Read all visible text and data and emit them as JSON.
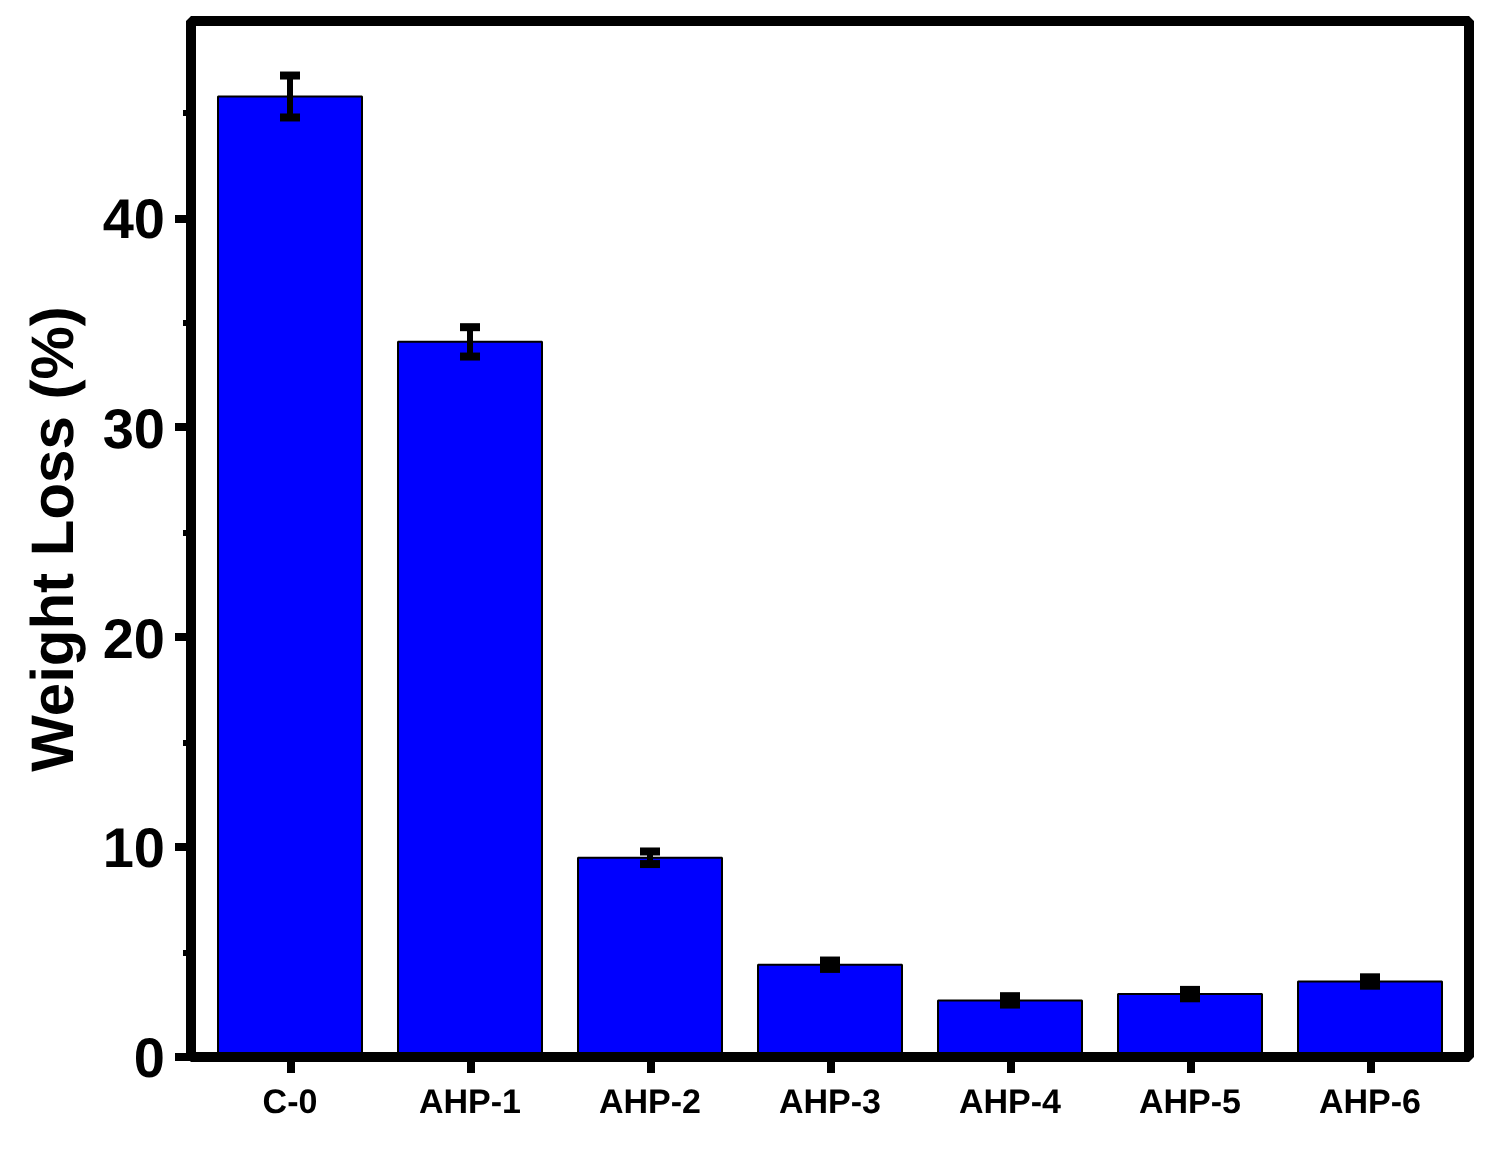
{
  "chart_data": {
    "type": "bar",
    "ylabel": "Weight Loss (%)",
    "categories": [
      "C-0",
      "AHP-1",
      "AHP-2",
      "AHP-3",
      "AHP-4",
      "AHP-5",
      "AHP-6"
    ],
    "values": [
      45.8,
      34.1,
      9.5,
      4.4,
      2.7,
      3.0,
      3.6
    ],
    "errors": [
      1.0,
      0.7,
      0.3,
      0.2,
      0.2,
      0.2,
      0.2
    ],
    "color": "#0000ff",
    "ylim": [
      0,
      49.4
    ],
    "yticks": [
      0,
      10,
      20,
      30,
      40
    ],
    "grid": false
  }
}
